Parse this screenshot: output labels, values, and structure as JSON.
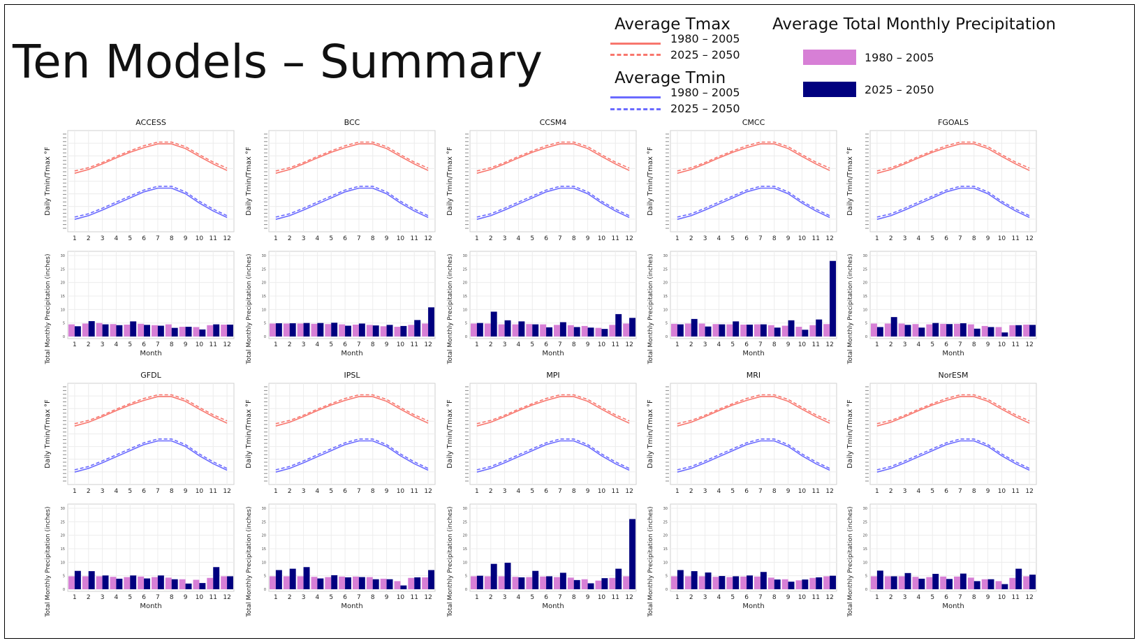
{
  "slide": {
    "title": "Ten Models –  Summary"
  },
  "legend": {
    "tmax_heading": "Average Tmax",
    "tmin_heading": "Average Tmin",
    "precip_heading": "Average Total Monthly Precipitation",
    "period_hist": "1980 – 2005",
    "period_future": "2025 – 2050",
    "colors": {
      "tmax": "#f8766d",
      "tmin": "#6a6aff",
      "precip_hist": "#d77fd6",
      "precip_future": "#00007f"
    }
  },
  "chart_data": {
    "type": "line+bar",
    "temp_axis": {
      "ylabel": "Daily Tmin/Tmax °F"
    },
    "precip_axis": {
      "ylabel": "Total Monthly Precipitation (inches)",
      "xlabel": "Month",
      "ylim": [
        0,
        30
      ],
      "yticks": [
        0,
        5,
        10,
        15,
        20,
        25,
        30
      ]
    },
    "months": [
      1,
      2,
      3,
      4,
      5,
      6,
      7,
      8,
      9,
      10,
      11,
      12
    ],
    "temperature_profile": {
      "tmax_hist": [
        0.17,
        0.25,
        0.37,
        0.5,
        0.62,
        0.72,
        0.8,
        0.8,
        0.7,
        0.53,
        0.37,
        0.23
      ],
      "tmax_future": [
        0.22,
        0.29,
        0.4,
        0.53,
        0.65,
        0.76,
        0.84,
        0.84,
        0.74,
        0.57,
        0.41,
        0.28
      ],
      "tmin_hist": [
        -0.82,
        -0.74,
        -0.62,
        -0.49,
        -0.36,
        -0.23,
        -0.15,
        -0.15,
        -0.27,
        -0.47,
        -0.64,
        -0.78
      ],
      "tmin_future": [
        -0.77,
        -0.7,
        -0.58,
        -0.45,
        -0.32,
        -0.19,
        -0.11,
        -0.11,
        -0.23,
        -0.43,
        -0.6,
        -0.74
      ]
    },
    "models": [
      {
        "name": "ACCESS",
        "precip_hist": [
          4.5,
          4.8,
          5.0,
          4.6,
          4.4,
          4.7,
          4.2,
          4.5,
          3.6,
          3.5,
          4.2,
          4.4
        ],
        "precip_future": [
          3.8,
          5.7,
          4.5,
          4.2,
          5.6,
          4.3,
          4.0,
          3.2,
          3.6,
          2.6,
          4.5,
          4.4
        ]
      },
      {
        "name": "BCC",
        "precip_hist": [
          4.8,
          4.8,
          4.8,
          4.7,
          4.6,
          4.5,
          4.4,
          4.3,
          3.8,
          3.6,
          4.3,
          4.8
        ],
        "precip_future": [
          4.9,
          4.9,
          5.0,
          5.0,
          5.1,
          4.0,
          4.8,
          4.1,
          4.3,
          3.9,
          6.1,
          10.8
        ]
      },
      {
        "name": "CCSM4",
        "precip_hist": [
          4.8,
          4.8,
          4.5,
          4.5,
          4.6,
          4.5,
          4.3,
          4.2,
          3.9,
          3.2,
          4.3,
          4.8
        ],
        "precip_future": [
          5.0,
          9.2,
          6.0,
          5.6,
          4.5,
          3.4,
          5.3,
          3.5,
          3.3,
          2.8,
          8.3,
          6.9
        ]
      },
      {
        "name": "CMCC",
        "precip_hist": [
          4.7,
          4.8,
          4.8,
          4.6,
          4.5,
          4.4,
          4.5,
          4.2,
          4.0,
          3.6,
          4.2,
          4.6
        ],
        "precip_future": [
          4.5,
          6.5,
          3.7,
          4.5,
          5.6,
          4.4,
          4.5,
          3.3,
          6.0,
          2.5,
          6.3,
          28.0
        ]
      },
      {
        "name": "FGOALS",
        "precip_hist": [
          4.8,
          4.8,
          4.8,
          4.6,
          4.5,
          4.7,
          4.7,
          4.5,
          3.9,
          3.5,
          4.2,
          4.4
        ],
        "precip_future": [
          3.5,
          7.2,
          4.3,
          3.3,
          5.0,
          4.6,
          4.9,
          2.9,
          3.5,
          1.5,
          4.2,
          4.3
        ]
      },
      {
        "name": "GFDL",
        "precip_hist": [
          4.8,
          4.8,
          4.8,
          4.6,
          4.5,
          4.7,
          4.5,
          4.3,
          3.7,
          3.5,
          4.2,
          4.8
        ],
        "precip_future": [
          6.8,
          6.7,
          5.1,
          3.9,
          5.1,
          4.0,
          5.1,
          3.7,
          2.1,
          2.3,
          8.2,
          4.8
        ]
      },
      {
        "name": "IPSL",
        "precip_hist": [
          4.8,
          4.8,
          4.8,
          4.6,
          4.5,
          4.7,
          4.7,
          4.5,
          3.9,
          3.0,
          4.2,
          4.4
        ],
        "precip_future": [
          7.1,
          7.6,
          8.2,
          4.0,
          5.2,
          4.4,
          4.5,
          3.7,
          3.7,
          1.4,
          4.4,
          7.1
        ]
      },
      {
        "name": "MPI",
        "precip_hist": [
          4.8,
          4.8,
          4.8,
          4.6,
          4.5,
          4.7,
          4.5,
          4.3,
          3.7,
          3.2,
          4.2,
          4.8
        ],
        "precip_future": [
          5.0,
          9.4,
          9.8,
          4.4,
          6.8,
          4.8,
          6.1,
          3.4,
          2.2,
          4.1,
          7.6,
          26.0
        ]
      },
      {
        "name": "MRI",
        "precip_hist": [
          4.8,
          4.8,
          4.8,
          4.6,
          4.5,
          4.7,
          4.7,
          4.3,
          3.7,
          3.3,
          4.2,
          4.8
        ],
        "precip_future": [
          7.1,
          6.7,
          6.2,
          4.9,
          4.8,
          5.1,
          6.4,
          3.6,
          2.8,
          3.6,
          4.4,
          5.0
        ]
      },
      {
        "name": "NorESM",
        "precip_hist": [
          4.8,
          4.8,
          4.8,
          4.6,
          4.5,
          4.7,
          4.7,
          4.3,
          3.7,
          3.0,
          4.2,
          4.8
        ],
        "precip_future": [
          6.9,
          4.8,
          6.0,
          3.9,
          5.7,
          3.8,
          5.8,
          3.0,
          3.7,
          1.9,
          7.6,
          5.4
        ]
      }
    ]
  }
}
